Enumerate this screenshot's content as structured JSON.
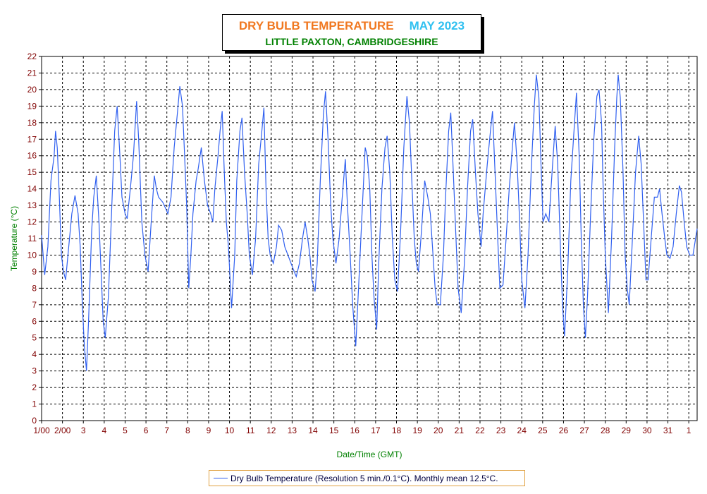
{
  "chart_data": {
    "type": "line",
    "title": "DRY BULB TEMPERATURE",
    "title_month": "MAY 2023",
    "subtitle": "LITTLE PAXTON, CAMBRIDGESHIRE",
    "xlabel": "Date/Time (GMT)",
    "ylabel": "Temperature (°C)",
    "ylim": [
      0,
      22
    ],
    "xlim": [
      1,
      32.4
    ],
    "yticks": [
      "0",
      "1",
      "2",
      "3",
      "4",
      "5",
      "6",
      "7",
      "8",
      "9",
      "10",
      "11",
      "12",
      "13",
      "14",
      "15",
      "16",
      "17",
      "18",
      "19",
      "20",
      "21",
      "22"
    ],
    "xticks": [
      {
        "x": 1,
        "label": "1/00"
      },
      {
        "x": 2,
        "label": "2/00"
      },
      {
        "x": 3,
        "label": "3"
      },
      {
        "x": 4,
        "label": "4"
      },
      {
        "x": 5,
        "label": "5"
      },
      {
        "x": 6,
        "label": "6"
      },
      {
        "x": 7,
        "label": "7"
      },
      {
        "x": 8,
        "label": "8"
      },
      {
        "x": 9,
        "label": "9"
      },
      {
        "x": 10,
        "label": "10"
      },
      {
        "x": 11,
        "label": "11"
      },
      {
        "x": 12,
        "label": "12"
      },
      {
        "x": 13,
        "label": "13"
      },
      {
        "x": 14,
        "label": "14"
      },
      {
        "x": 15,
        "label": "15"
      },
      {
        "x": 16,
        "label": "16"
      },
      {
        "x": 17,
        "label": "17"
      },
      {
        "x": 18,
        "label": "18"
      },
      {
        "x": 19,
        "label": "19"
      },
      {
        "x": 20,
        "label": "20"
      },
      {
        "x": 21,
        "label": "21"
      },
      {
        "x": 22,
        "label": "22"
      },
      {
        "x": 23,
        "label": "23"
      },
      {
        "x": 24,
        "label": "24"
      },
      {
        "x": 25,
        "label": "25"
      },
      {
        "x": 26,
        "label": "26"
      },
      {
        "x": 27,
        "label": "27"
      },
      {
        "x": 28,
        "label": "28"
      },
      {
        "x": 29,
        "label": "29"
      },
      {
        "x": 30,
        "label": "30"
      },
      {
        "x": 31,
        "label": "31"
      },
      {
        "x": 32,
        "label": "1"
      }
    ],
    "grid": true,
    "series": [
      {
        "name": "Dry Bulb Temperature (Resolution 5 min./0.1°C). Monthly mean 12.5°C.",
        "color": "#3060f0",
        "points": [
          [
            1.0,
            11.2
          ],
          [
            1.15,
            8.8
          ],
          [
            1.3,
            10.5
          ],
          [
            1.45,
            14.5
          ],
          [
            1.6,
            16.0
          ],
          [
            1.67,
            17.5
          ],
          [
            1.75,
            16.5
          ],
          [
            1.85,
            13.5
          ],
          [
            1.95,
            10.0
          ],
          [
            2.05,
            9.0
          ],
          [
            2.15,
            8.5
          ],
          [
            2.3,
            10.5
          ],
          [
            2.45,
            12.5
          ],
          [
            2.6,
            13.6
          ],
          [
            2.75,
            12.5
          ],
          [
            2.85,
            10.5
          ],
          [
            2.95,
            7.0
          ],
          [
            3.05,
            4.5
          ],
          [
            3.15,
            3.0
          ],
          [
            3.25,
            6.0
          ],
          [
            3.4,
            11.5
          ],
          [
            3.5,
            13.5
          ],
          [
            3.62,
            14.8
          ],
          [
            3.75,
            12.0
          ],
          [
            3.85,
            9.0
          ],
          [
            3.95,
            6.0
          ],
          [
            4.05,
            5.0
          ],
          [
            4.2,
            7.5
          ],
          [
            4.35,
            12.5
          ],
          [
            4.5,
            17.5
          ],
          [
            4.62,
            19.0
          ],
          [
            4.75,
            16.0
          ],
          [
            4.85,
            13.5
          ],
          [
            5.0,
            12.5
          ],
          [
            5.1,
            12.2
          ],
          [
            5.25,
            14.0
          ],
          [
            5.4,
            16.0
          ],
          [
            5.55,
            19.3
          ],
          [
            5.65,
            17.0
          ],
          [
            5.8,
            12.0
          ],
          [
            5.95,
            10.0
          ],
          [
            6.1,
            9.0
          ],
          [
            6.25,
            12.0
          ],
          [
            6.4,
            14.8
          ],
          [
            6.5,
            14.0
          ],
          [
            6.6,
            13.5
          ],
          [
            6.8,
            13.2
          ],
          [
            6.95,
            12.8
          ],
          [
            7.05,
            12.5
          ],
          [
            7.2,
            13.5
          ],
          [
            7.35,
            16.5
          ],
          [
            7.5,
            18.5
          ],
          [
            7.62,
            20.2
          ],
          [
            7.75,
            19.0
          ],
          [
            7.85,
            16.0
          ],
          [
            7.95,
            13.0
          ],
          [
            8.05,
            8.0
          ],
          [
            8.15,
            10.0
          ],
          [
            8.25,
            12.5
          ],
          [
            8.4,
            14.5
          ],
          [
            8.5,
            15.2
          ],
          [
            8.65,
            16.5
          ],
          [
            8.8,
            14.5
          ],
          [
            8.95,
            13.0
          ],
          [
            9.1,
            12.5
          ],
          [
            9.2,
            12.0
          ],
          [
            9.3,
            14.0
          ],
          [
            9.45,
            16.0
          ],
          [
            9.55,
            17.5
          ],
          [
            9.65,
            18.7
          ],
          [
            9.75,
            15.0
          ],
          [
            9.85,
            12.0
          ],
          [
            9.95,
            10.5
          ],
          [
            10.1,
            6.8
          ],
          [
            10.25,
            10.0
          ],
          [
            10.35,
            14.5
          ],
          [
            10.5,
            17.5
          ],
          [
            10.6,
            18.3
          ],
          [
            10.72,
            15.0
          ],
          [
            10.85,
            12.5
          ],
          [
            10.95,
            10.0
          ],
          [
            11.1,
            8.8
          ],
          [
            11.25,
            11.0
          ],
          [
            11.4,
            15.5
          ],
          [
            11.55,
            17.5
          ],
          [
            11.65,
            18.9
          ],
          [
            11.75,
            14.0
          ],
          [
            11.85,
            11.0
          ],
          [
            11.95,
            10.0
          ],
          [
            12.1,
            9.5
          ],
          [
            12.25,
            10.5
          ],
          [
            12.35,
            11.8
          ],
          [
            12.5,
            11.5
          ],
          [
            12.65,
            10.5
          ],
          [
            12.8,
            10.0
          ],
          [
            12.95,
            9.5
          ],
          [
            13.1,
            9.0
          ],
          [
            13.2,
            8.7
          ],
          [
            13.35,
            9.5
          ],
          [
            13.5,
            11.0
          ],
          [
            13.62,
            12.0
          ],
          [
            13.75,
            11.0
          ],
          [
            13.85,
            10.0
          ],
          [
            13.95,
            8.5
          ],
          [
            14.1,
            7.8
          ],
          [
            14.2,
            9.5
          ],
          [
            14.35,
            14.5
          ],
          [
            14.5,
            18.5
          ],
          [
            14.6,
            19.9
          ],
          [
            14.72,
            17.0
          ],
          [
            14.85,
            13.0
          ],
          [
            14.95,
            11.0
          ],
          [
            15.1,
            9.5
          ],
          [
            15.25,
            11.0
          ],
          [
            15.4,
            13.5
          ],
          [
            15.55,
            15.8
          ],
          [
            15.65,
            13.0
          ],
          [
            15.78,
            10.0
          ],
          [
            15.9,
            7.0
          ],
          [
            16.05,
            4.5
          ],
          [
            16.2,
            8.5
          ],
          [
            16.35,
            12.5
          ],
          [
            16.5,
            16.5
          ],
          [
            16.6,
            16.0
          ],
          [
            16.72,
            14.0
          ],
          [
            16.82,
            10.0
          ],
          [
            16.92,
            7.5
          ],
          [
            17.05,
            5.5
          ],
          [
            17.15,
            9.5
          ],
          [
            17.3,
            14.0
          ],
          [
            17.45,
            16.5
          ],
          [
            17.55,
            17.2
          ],
          [
            17.68,
            15.0
          ],
          [
            17.8,
            11.0
          ],
          [
            17.92,
            8.5
          ],
          [
            18.05,
            7.8
          ],
          [
            18.2,
            11.5
          ],
          [
            18.35,
            16.5
          ],
          [
            18.5,
            19.6
          ],
          [
            18.62,
            18.0
          ],
          [
            18.75,
            14.0
          ],
          [
            18.85,
            11.0
          ],
          [
            18.95,
            9.5
          ],
          [
            19.05,
            9.0
          ],
          [
            19.2,
            11.5
          ],
          [
            19.35,
            14.5
          ],
          [
            19.5,
            13.5
          ],
          [
            19.62,
            12.5
          ],
          [
            19.75,
            10.0
          ],
          [
            19.85,
            8.0
          ],
          [
            19.95,
            7.0
          ],
          [
            20.1,
            7.0
          ],
          [
            20.25,
            10.0
          ],
          [
            20.35,
            13.5
          ],
          [
            20.5,
            17.5
          ],
          [
            20.6,
            18.6
          ],
          [
            20.72,
            15.0
          ],
          [
            20.85,
            11.0
          ],
          [
            20.95,
            8.0
          ],
          [
            21.1,
            6.5
          ],
          [
            21.25,
            9.5
          ],
          [
            21.4,
            14.0
          ],
          [
            21.55,
            17.5
          ],
          [
            21.65,
            18.2
          ],
          [
            21.78,
            15.0
          ],
          [
            21.9,
            12.5
          ],
          [
            22.05,
            10.5
          ],
          [
            22.15,
            12.5
          ],
          [
            22.35,
            15.5
          ],
          [
            22.5,
            17.5
          ],
          [
            22.6,
            18.7
          ],
          [
            22.72,
            15.0
          ],
          [
            22.85,
            11.0
          ],
          [
            22.95,
            8.0
          ],
          [
            23.1,
            8.2
          ],
          [
            23.25,
            11.0
          ],
          [
            23.4,
            14.0
          ],
          [
            23.55,
            16.5
          ],
          [
            23.65,
            18.0
          ],
          [
            23.78,
            15.5
          ],
          [
            23.9,
            12.0
          ],
          [
            24.0,
            8.5
          ],
          [
            24.15,
            6.8
          ],
          [
            24.3,
            10.0
          ],
          [
            24.45,
            15.0
          ],
          [
            24.6,
            19.0
          ],
          [
            24.7,
            20.9
          ],
          [
            24.82,
            19.5
          ],
          [
            24.92,
            15.5
          ],
          [
            25.02,
            12.0
          ],
          [
            25.15,
            12.5
          ],
          [
            25.3,
            12.0
          ],
          [
            25.45,
            15.0
          ],
          [
            25.6,
            17.8
          ],
          [
            25.72,
            15.5
          ],
          [
            25.85,
            10.5
          ],
          [
            25.95,
            7.0
          ],
          [
            26.05,
            5.1
          ],
          [
            26.2,
            9.0
          ],
          [
            26.35,
            14.5
          ],
          [
            26.5,
            17.5
          ],
          [
            26.62,
            19.8
          ],
          [
            26.75,
            16.0
          ],
          [
            26.85,
            11.0
          ],
          [
            26.95,
            7.0
          ],
          [
            27.05,
            5.0
          ],
          [
            27.15,
            7.5
          ],
          [
            27.3,
            12.5
          ],
          [
            27.45,
            17.0
          ],
          [
            27.6,
            19.6
          ],
          [
            27.7,
            20.0
          ],
          [
            27.82,
            18.0
          ],
          [
            27.9,
            14.0
          ],
          [
            28.0,
            10.0
          ],
          [
            28.15,
            6.5
          ],
          [
            28.3,
            11.0
          ],
          [
            28.45,
            16.5
          ],
          [
            28.55,
            19.5
          ],
          [
            28.62,
            20.9
          ],
          [
            28.72,
            19.5
          ],
          [
            28.85,
            15.0
          ],
          [
            28.95,
            10.0
          ],
          [
            29.05,
            8.0
          ],
          [
            29.15,
            7.0
          ],
          [
            29.3,
            11.0
          ],
          [
            29.45,
            15.0
          ],
          [
            29.6,
            17.2
          ],
          [
            29.72,
            15.5
          ],
          [
            29.85,
            11.5
          ],
          [
            29.95,
            8.5
          ],
          [
            30.05,
            8.5
          ],
          [
            30.2,
            11.0
          ],
          [
            30.35,
            13.5
          ],
          [
            30.5,
            13.5
          ],
          [
            30.6,
            14.0
          ],
          [
            30.72,
            12.5
          ],
          [
            30.85,
            11.0
          ],
          [
            30.95,
            10.0
          ],
          [
            31.1,
            9.8
          ],
          [
            31.25,
            10.5
          ],
          [
            31.4,
            12.5
          ],
          [
            31.55,
            14.2
          ],
          [
            31.65,
            13.8
          ],
          [
            31.78,
            12.0
          ],
          [
            31.9,
            10.5
          ],
          [
            32.05,
            10.0
          ],
          [
            32.2,
            10.0
          ],
          [
            32.4,
            11.6
          ]
        ]
      }
    ],
    "legend": {
      "position": "bottom-center"
    },
    "colors": {
      "title": "#f07820",
      "title_month": "#30c0f0",
      "subtitle": "#008000",
      "axis_title": "#008000",
      "tick_labels": "#800000",
      "line": "#3060f0",
      "legend_border": "#e0a040"
    }
  }
}
